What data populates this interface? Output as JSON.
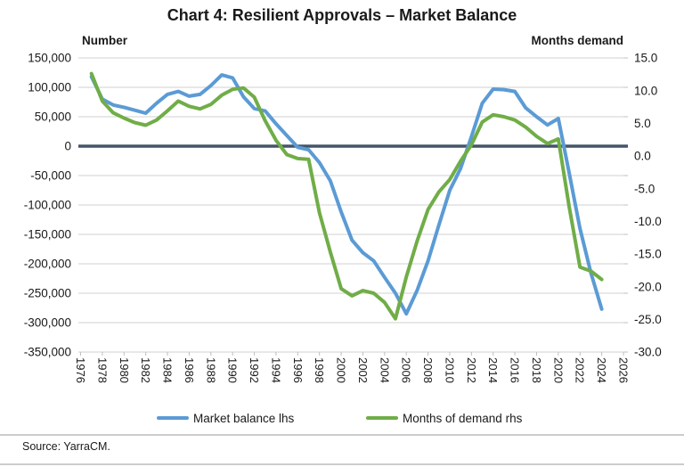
{
  "title": "Chart 4: Resilient Approvals – Market Balance",
  "left_axis": {
    "label": "Number",
    "ticks": [
      "150,000",
      "100,000",
      "50,000",
      "0",
      "-50,000",
      "-100,000",
      "-150,000",
      "-200,000",
      "-250,000",
      "-300,000",
      "-350,000"
    ]
  },
  "right_axis": {
    "label": "Months demand",
    "ticks": [
      "15.0",
      "10.0",
      "5.0",
      "0.0",
      "-5.0",
      "-10.0",
      "-15.0",
      "-20.0",
      "-25.0",
      "-30.0"
    ]
  },
  "x_axis": {
    "tick_years": [
      1976,
      1978,
      1980,
      1982,
      1984,
      1986,
      1988,
      1990,
      1992,
      1994,
      1996,
      1998,
      2000,
      2002,
      2004,
      2006,
      2008,
      2010,
      2012,
      2014,
      2016,
      2018,
      2020,
      2022,
      2024,
      2026
    ]
  },
  "legend": [
    {
      "label": "Market balance lhs",
      "color": "#5B9BD5"
    },
    {
      "label": "Months of demand rhs",
      "color": "#70AD47"
    }
  ],
  "source": "Source: YarraCM.",
  "colors": {
    "blue": "#5B9BD5",
    "green": "#70AD47",
    "zero_line": "#44546A",
    "grid": "#D9D9D9",
    "tick": "#BFBFBF",
    "text": "#1a1a1a"
  },
  "chart_data": {
    "type": "line",
    "title": "Chart 4: Resilient Approvals – Market Balance",
    "x": [
      1977,
      1978,
      1979,
      1980,
      1981,
      1982,
      1983,
      1984,
      1985,
      1986,
      1987,
      1988,
      1989,
      1990,
      1991,
      1992,
      1993,
      1994,
      1995,
      1996,
      1997,
      1998,
      1999,
      2000,
      2001,
      2002,
      2003,
      2004,
      2005,
      2006,
      2007,
      2008,
      2009,
      2010,
      2011,
      2012,
      2013,
      2014,
      2015,
      2016,
      2017,
      2018,
      2019,
      2020,
      2021,
      2022,
      2023,
      2024
    ],
    "series": [
      {
        "name": "Market balance lhs",
        "axis": "left",
        "color": "#5B9BD5",
        "values": [
          118000,
          80000,
          70000,
          66000,
          61000,
          56000,
          73000,
          88000,
          93000,
          85000,
          88000,
          103000,
          121000,
          116000,
          84000,
          64000,
          60000,
          38000,
          18000,
          -2000,
          -6000,
          -28000,
          -59000,
          -112000,
          -160000,
          -181000,
          -195000,
          -223000,
          -250000,
          -285000,
          -245000,
          -195000,
          -134000,
          -75000,
          -38000,
          16000,
          73000,
          97000,
          96000,
          93000,
          65000,
          50000,
          36000,
          47000,
          -45000,
          -140000,
          -215000,
          -277000
        ]
      },
      {
        "name": "Months of demand rhs",
        "axis": "right",
        "color": "#70AD47",
        "values": [
          12.6,
          8.4,
          6.6,
          5.8,
          5.1,
          4.7,
          5.5,
          6.9,
          8.4,
          7.6,
          7.2,
          7.9,
          9.3,
          10.2,
          10.4,
          9.0,
          5.4,
          2.4,
          0.2,
          -0.4,
          -0.5,
          -8.7,
          -14.7,
          -20.3,
          -21.4,
          -20.6,
          -21.0,
          -22.4,
          -24.9,
          -18.5,
          -13.0,
          -8.2,
          -5.5,
          -3.6,
          -0.8,
          1.7,
          5.2,
          6.3,
          6.0,
          5.5,
          4.4,
          3.0,
          1.9,
          2.6,
          -7.7,
          -17.0,
          -17.6,
          -18.9
        ]
      }
    ],
    "left_ylim": [
      -350000,
      150000
    ],
    "right_ylim": [
      -30,
      15
    ],
    "xlim": [
      1976,
      2026
    ],
    "grid": "horizontal",
    "legend_position": "bottom"
  }
}
